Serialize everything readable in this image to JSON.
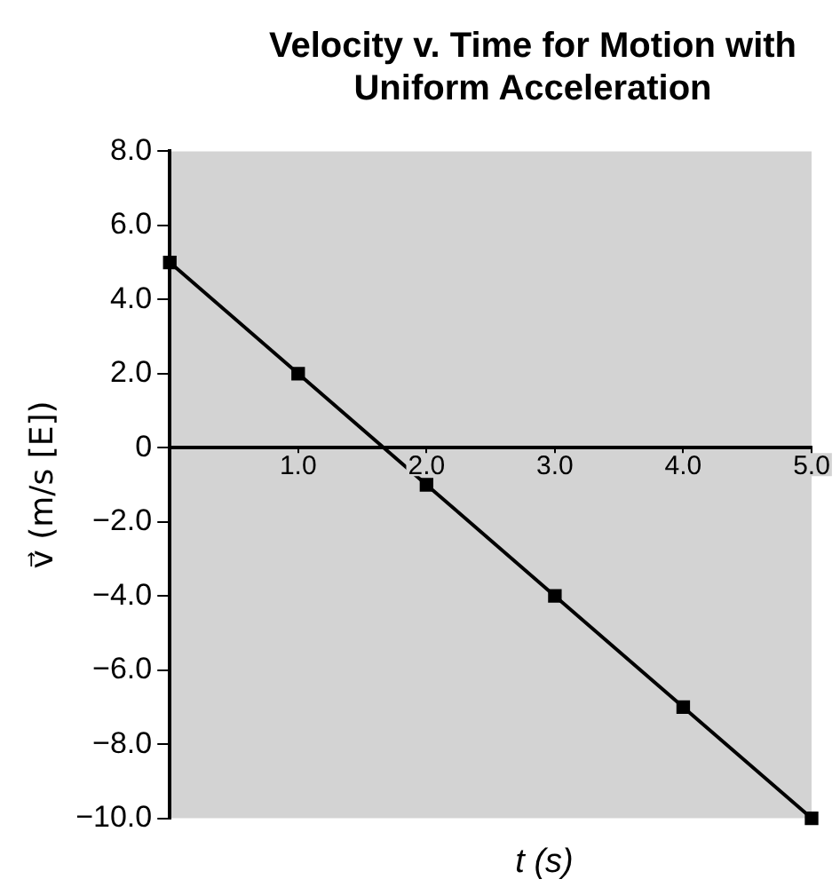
{
  "chart_data": {
    "type": "line",
    "title": "Velocity v. Time for Motion with Uniform Acceleration",
    "xlabel": "t (s)",
    "ylabel": "v⃗ (m/s [E])",
    "x": [
      0,
      1,
      2,
      3,
      4,
      5
    ],
    "series": [
      {
        "color": "#000000",
        "values": [
          5,
          2,
          -1,
          -4,
          -7,
          -10
        ]
      }
    ],
    "xlim": [
      0,
      5
    ],
    "xticks": [
      {
        "value": 1,
        "label": "1.0"
      },
      {
        "value": 2,
        "label": "2.0"
      },
      {
        "value": 3,
        "label": "3.0"
      },
      {
        "value": 4,
        "label": "4.0"
      },
      {
        "value": 5,
        "label": "5.0"
      }
    ],
    "ylim": [
      -10,
      8
    ],
    "yticks": [
      {
        "value": -10,
        "label": "−10.0"
      },
      {
        "value": -8,
        "label": "−8.0"
      },
      {
        "value": -6,
        "label": "−6.0"
      },
      {
        "value": -4,
        "label": "−4.0"
      },
      {
        "value": -2,
        "label": "−2.0"
      },
      0,
      {
        "value": 2,
        "label": "2.0"
      },
      {
        "value": 4,
        "label": "4.0"
      },
      {
        "value": 6,
        "label": "6.0"
      },
      {
        "value": 8,
        "label": "8.0"
      }
    ],
    "grid": false,
    "legend": false,
    "marker": "square",
    "line_style": "solid"
  }
}
